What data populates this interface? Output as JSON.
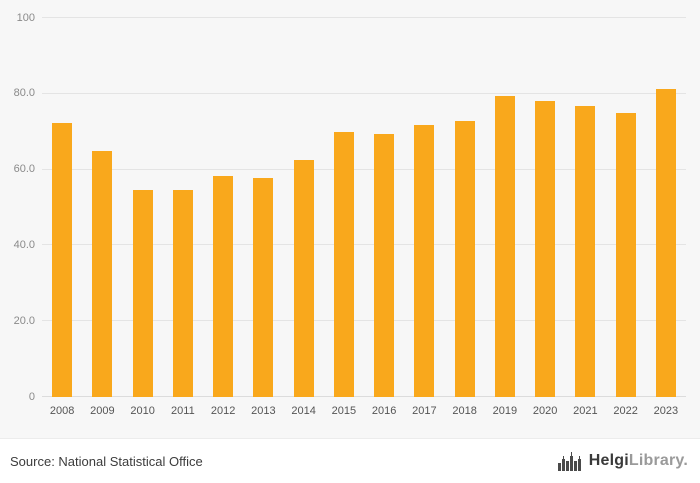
{
  "chart_data": {
    "type": "bar",
    "categories": [
      "2008",
      "2009",
      "2010",
      "2011",
      "2012",
      "2013",
      "2014",
      "2015",
      "2016",
      "2017",
      "2018",
      "2019",
      "2020",
      "2021",
      "2022",
      "2023"
    ],
    "values": [
      72.3,
      64.8,
      54.5,
      54.5,
      58.2,
      57.7,
      62.5,
      69.9,
      69.3,
      71.7,
      72.9,
      79.3,
      78.0,
      76.8,
      75.0,
      81.2
    ],
    "ylim": [
      0,
      100
    ],
    "yticks": [
      0,
      20,
      40,
      60,
      80,
      100
    ],
    "ytick_labels": [
      "0",
      "20.0",
      "40.0",
      "60.0",
      "80.0",
      "100"
    ],
    "grid": true,
    "legend": false,
    "bar_color": "#f9a81c",
    "background": "#f7f7f7"
  },
  "footer": {
    "source": "Source: National Statistical Office",
    "logo_text_primary": "Helgi",
    "logo_text_secondary": "Library."
  }
}
